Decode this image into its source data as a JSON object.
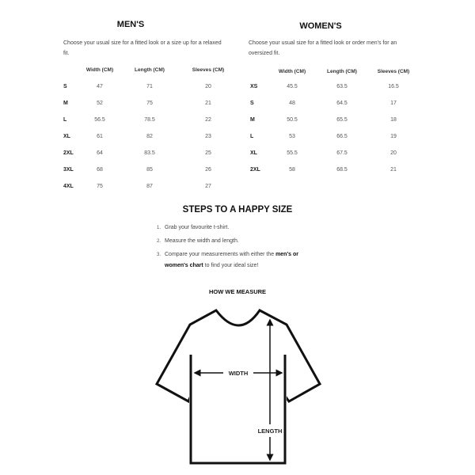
{
  "mens": {
    "title": "MEN'S",
    "description": "Choose your usual size for a fitted look or a size up for a relaxed fit.",
    "headers": [
      "Width (CM)",
      "Length (CM)",
      "Sleeves (CM)"
    ],
    "rows": [
      {
        "size": "S",
        "width": "47",
        "length": "71",
        "sleeves": "20"
      },
      {
        "size": "M",
        "width": "52",
        "length": "75",
        "sleeves": "21"
      },
      {
        "size": "L",
        "width": "56.5",
        "length": "78.5",
        "sleeves": "22"
      },
      {
        "size": "XL",
        "width": "61",
        "length": "82",
        "sleeves": "23"
      },
      {
        "size": "2XL",
        "width": "64",
        "length": "83.5",
        "sleeves": "25"
      },
      {
        "size": "3XL",
        "width": "68",
        "length": "85",
        "sleeves": "26"
      },
      {
        "size": "4XL",
        "width": "75",
        "length": "87",
        "sleeves": "27"
      }
    ]
  },
  "womens": {
    "title": "WOMEN'S",
    "description": "Choose your usual size for a fitted look or order men's for an oversized fit.",
    "headers": [
      "Width (CM)",
      "Length (CM)",
      "Sleeves (CM)"
    ],
    "rows": [
      {
        "size": "XS",
        "width": "45.5",
        "length": "63.5",
        "sleeves": "16.5"
      },
      {
        "size": "S",
        "width": "48",
        "length": "64.5",
        "sleeves": "17"
      },
      {
        "size": "M",
        "width": "50.5",
        "length": "65.5",
        "sleeves": "18"
      },
      {
        "size": "L",
        "width": "53",
        "length": "66.5",
        "sleeves": "19"
      },
      {
        "size": "XL",
        "width": "55.5",
        "length": "67.5",
        "sleeves": "20"
      },
      {
        "size": "2XL",
        "width": "58",
        "length": "68.5",
        "sleeves": "21"
      }
    ]
  },
  "steps": {
    "title": "STEPS TO A HAPPY SIZE",
    "items": [
      {
        "num": "1.",
        "text": "Grab your favourite t-shirt."
      },
      {
        "num": "2.",
        "text": "Measure the width and length."
      },
      {
        "num": "3.",
        "text_before": "Compare your measurements with either the ",
        "bold": "men's or women's chart",
        "text_after": " to find your ideal size!"
      }
    ]
  },
  "measure": {
    "title": "HOW WE MEASURE",
    "width_label": "WIDTH",
    "length_label": "LENGTH"
  }
}
